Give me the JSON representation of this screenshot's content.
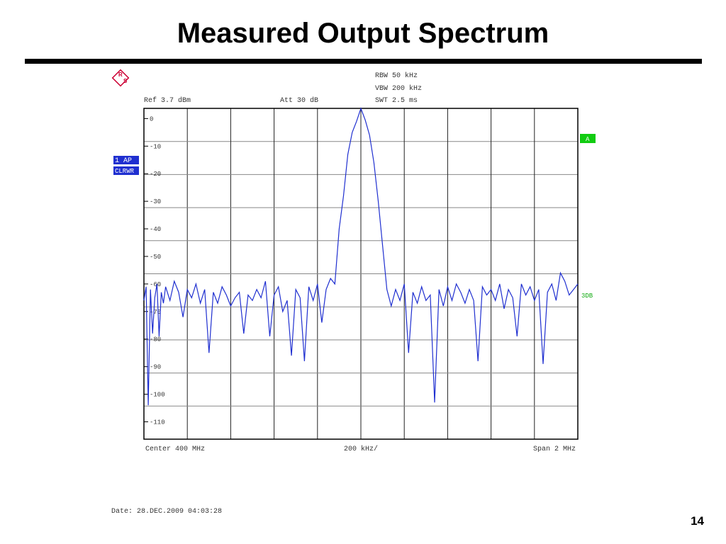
{
  "slide": {
    "title": "Measured Output Spectrum",
    "page_number": "14",
    "date": "Date: 28.DEC.2009  04:03:28",
    "logo": [
      "R",
      "S"
    ]
  },
  "chart_data": {
    "type": "line",
    "annotations": {
      "rbw": "RBW  50 kHz",
      "vbw": "VBW  200 kHz",
      "swt": "SWT  2.5 ms",
      "ref": "Ref   3.7 dBm",
      "att": "Att   30 dB",
      "trace": "1 AP",
      "mode": "CLRWR",
      "marker": "A",
      "line_label": "3DB",
      "center": "Center  400 MHz",
      "div": "200 kHz/",
      "span": "Span  2 MHz"
    },
    "xlim": [
      399,
      401
    ],
    "ylim": [
      -116.3,
      3.7
    ],
    "yticks": [
      0,
      -10,
      -20,
      -30,
      -40,
      -50,
      -60,
      -70,
      -80,
      -90,
      -100,
      -110
    ],
    "grid": true,
    "series": [
      {
        "name": "1 AP",
        "color": "#1f2fd0",
        "x": [
          399.0,
          399.01,
          399.02,
          399.03,
          399.04,
          399.05,
          399.06,
          399.07,
          399.08,
          399.09,
          399.1,
          399.12,
          399.14,
          399.16,
          399.18,
          399.2,
          399.22,
          399.24,
          399.26,
          399.28,
          399.3,
          399.32,
          399.34,
          399.36,
          399.38,
          399.4,
          399.42,
          399.44,
          399.46,
          399.48,
          399.5,
          399.52,
          399.54,
          399.56,
          399.58,
          399.6,
          399.62,
          399.64,
          399.66,
          399.68,
          399.7,
          399.72,
          399.74,
          399.76,
          399.78,
          399.8,
          399.82,
          399.84,
          399.86,
          399.88,
          399.9,
          399.92,
          399.94,
          399.96,
          399.98,
          400.0,
          400.02,
          400.04,
          400.06,
          400.08,
          400.1,
          400.12,
          400.14,
          400.16,
          400.18,
          400.2,
          400.22,
          400.24,
          400.26,
          400.28,
          400.3,
          400.32,
          400.34,
          400.36,
          400.38,
          400.4,
          400.42,
          400.44,
          400.46,
          400.48,
          400.5,
          400.52,
          400.54,
          400.56,
          400.58,
          400.6,
          400.62,
          400.64,
          400.66,
          400.68,
          400.7,
          400.72,
          400.74,
          400.76,
          400.78,
          400.8,
          400.82,
          400.84,
          400.86,
          400.88,
          400.9,
          400.92,
          400.94,
          400.96,
          400.98,
          401.0
        ],
        "values": [
          -66,
          -61,
          -104,
          -62,
          -78,
          -65,
          -60,
          -79,
          -63,
          -67,
          -61,
          -66,
          -59,
          -63,
          -72,
          -62,
          -65,
          -60,
          -67,
          -62,
          -85,
          -63,
          -67,
          -61,
          -64,
          -68,
          -65,
          -63,
          -78,
          -64,
          -66,
          -62,
          -65,
          -59,
          -79,
          -64,
          -61,
          -70,
          -66,
          -86,
          -62,
          -65,
          -88,
          -61,
          -66,
          -60,
          -74,
          -62,
          -58,
          -60,
          -40,
          -28,
          -13,
          -5,
          -1,
          3.7,
          -0.5,
          -6,
          -16,
          -30,
          -46,
          -62,
          -68,
          -62,
          -66,
          -60,
          -85,
          -63,
          -67,
          -61,
          -66,
          -64,
          -103,
          -62,
          -68,
          -61,
          -66,
          -60,
          -63,
          -67,
          -62,
          -66,
          -88,
          -61,
          -64,
          -62,
          -66,
          -60,
          -69,
          -62,
          -65,
          -79,
          -60,
          -64,
          -61,
          -66,
          -62,
          -89,
          -63,
          -60,
          -66,
          -56,
          -59,
          -64,
          -62,
          -60
        ]
      }
    ]
  }
}
